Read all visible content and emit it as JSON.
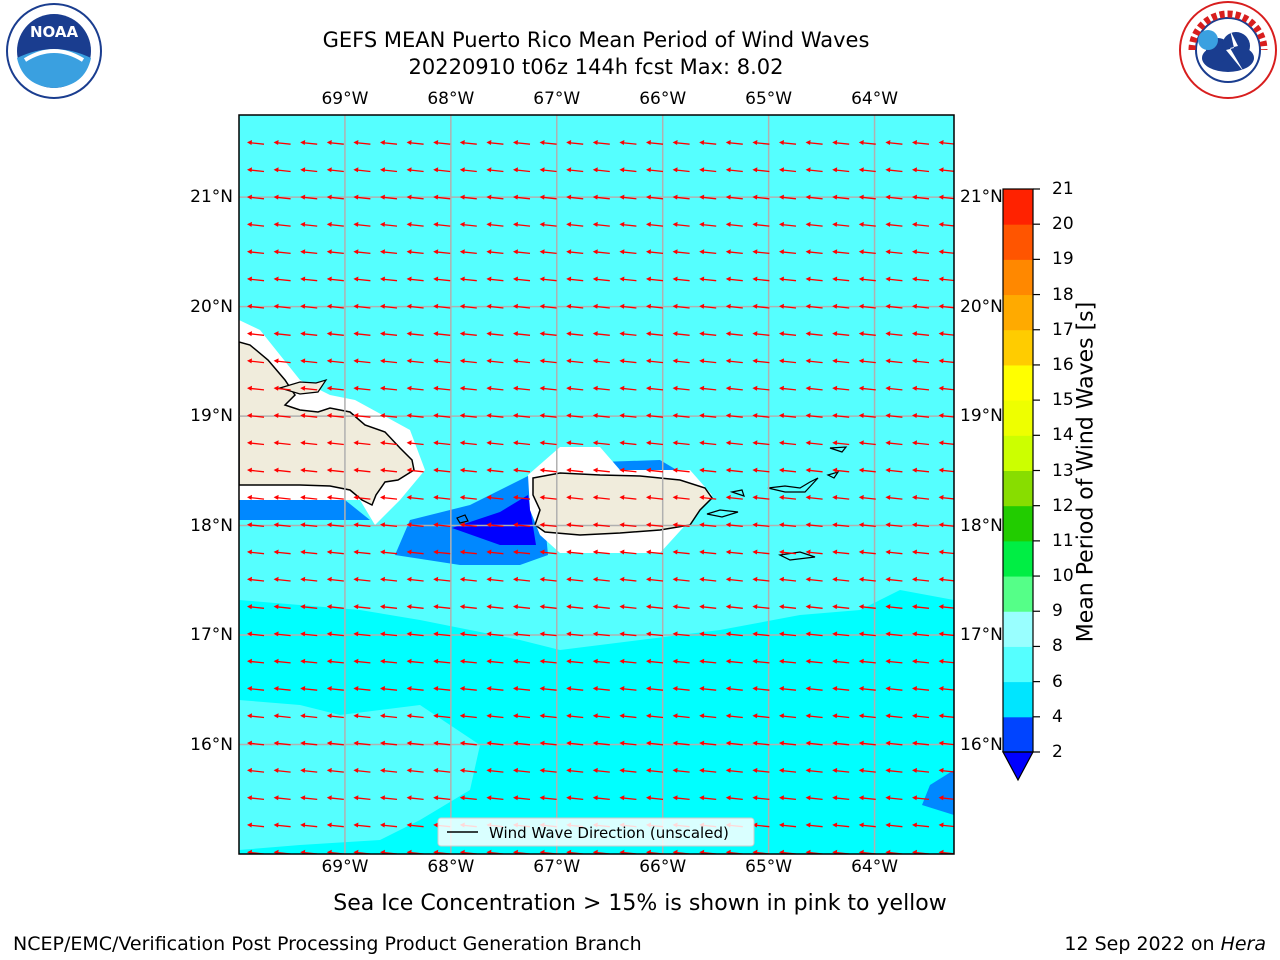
{
  "title": {
    "line1": "GEFS MEAN Puerto Rico Mean Period of Wind Waves",
    "line2": "20220910 t06z 144h fcst   Max: 8.02"
  },
  "logos": {
    "left": {
      "name": "noaa-logo",
      "text": "NOAA",
      "ring_text_top": "NATIONAL OCEANIC AND ATMOSPHERIC ADMINISTRATION",
      "ring_text_bottom": "U.S. DEPARTMENT OF COMMERCE"
    },
    "right": {
      "name": "nws-logo",
      "ring_text": "NATIONAL WEATHER SERVICE"
    }
  },
  "map": {
    "extent": {
      "lon_min": -70.0,
      "lon_max": -63.25,
      "lat_min": 15.0,
      "lat_max": 21.75
    },
    "lon_ticks": [
      "69°W",
      "68°W",
      "67°W",
      "66°W",
      "65°W",
      "64°W"
    ],
    "lon_values": [
      -69,
      -68,
      -67,
      -66,
      -65,
      -64
    ],
    "lat_ticks": [
      "21°N",
      "20°N",
      "19°N",
      "18°N",
      "17°N",
      "16°N"
    ],
    "lat_values": [
      21,
      20,
      19,
      18,
      17,
      16
    ],
    "gridlines": true,
    "arrow_color": "#ff0000",
    "arrow_direction": "east-to-west (slightly toward southwest)",
    "legend": {
      "label": "Wind Wave Direction (unscaled)",
      "placement": "bottom-center"
    },
    "colors": {
      "ocean_6_8": "#00ffff",
      "ocean_8_9": "#55ffff",
      "ocean_4_6": "#0088ff",
      "ocean_2_4": "#0000ff",
      "land": "#f0ecdc",
      "coast": "#000000"
    }
  },
  "colorbar": {
    "label": "Mean Period of Wind Waves [s]",
    "ticks": [
      "2",
      "4",
      "6",
      "8",
      "9",
      "10",
      "11",
      "12",
      "13",
      "14",
      "15",
      "16",
      "17",
      "18",
      "19",
      "20",
      "21"
    ],
    "colors": [
      "#0044ff",
      "#00e5ff",
      "#55ffff",
      "#99ffff",
      "#55ff88",
      "#00ee44",
      "#22cc00",
      "#88dd00",
      "#ccff00",
      "#eeff00",
      "#ffff00",
      "#ffcc00",
      "#ffaa00",
      "#ff8800",
      "#ff5500",
      "#ff2200",
      "#ff0000"
    ],
    "under_color": "#0000ff"
  },
  "caption": "Sea Ice Concentration > 15% is shown in pink to yellow",
  "footer": {
    "left": "NCEP/EMC/Verification Post Processing Product Generation Branch",
    "right_prefix": "12 Sep 2022 on ",
    "right_machine": "Hera"
  }
}
